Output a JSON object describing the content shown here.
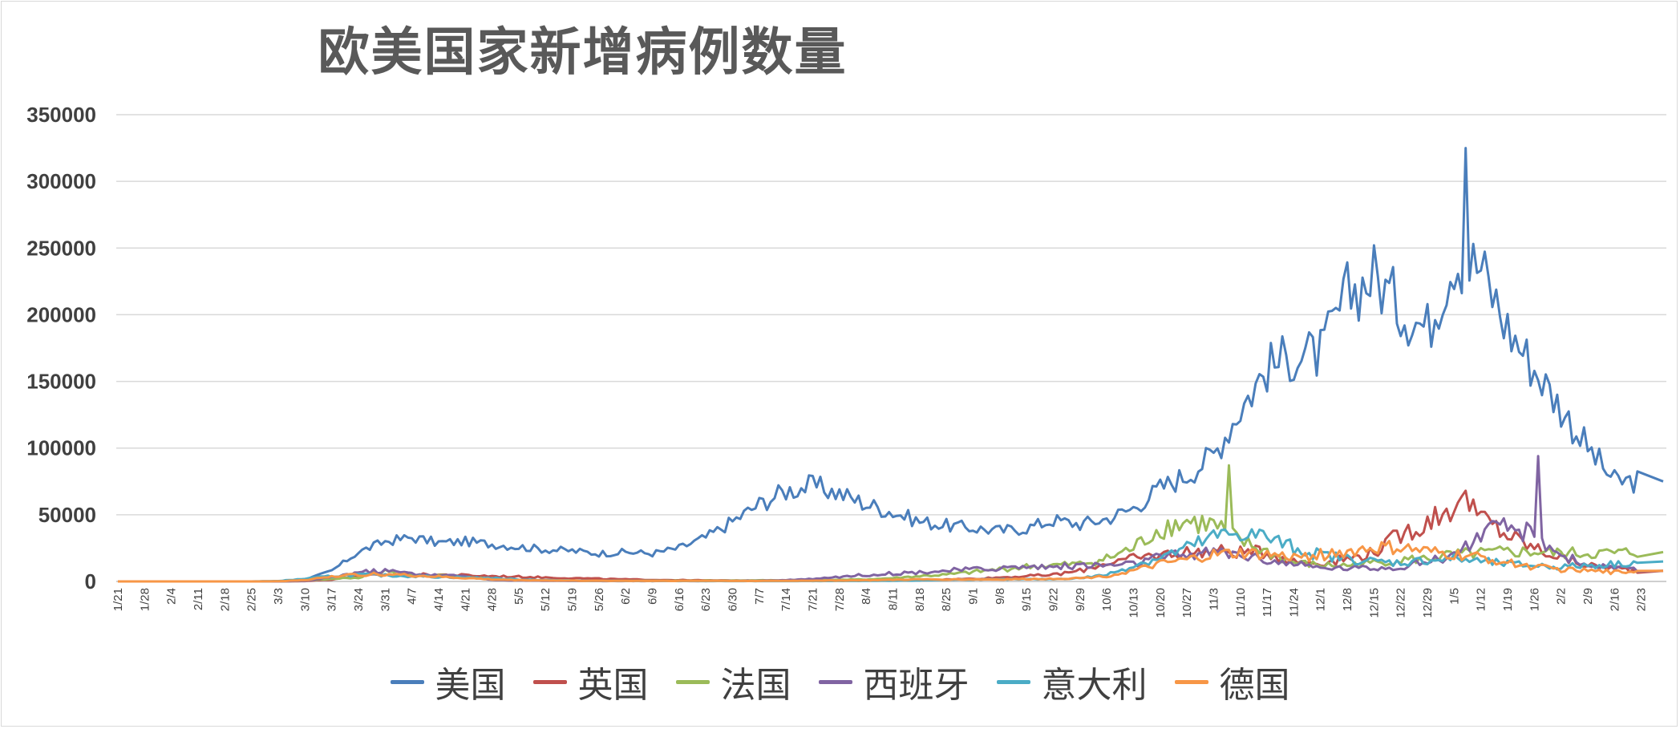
{
  "chart_data": {
    "type": "line",
    "title": "欧美国家新增病例数量",
    "xlabel": "",
    "ylabel": "",
    "ylim": [
      0,
      350000
    ],
    "y_ticks": [
      "350000",
      "300000",
      "250000",
      "200000",
      "150000",
      "100000",
      "50000",
      "0"
    ],
    "x_tick_labels": [
      "1/21",
      "1/28",
      "2/4",
      "2/11",
      "2/18",
      "2/25",
      "3/3",
      "3/10",
      "3/17",
      "3/24",
      "3/31",
      "4/7",
      "4/14",
      "4/21",
      "4/28",
      "5/5",
      "5/12",
      "5/19",
      "5/26",
      "6/2",
      "6/9",
      "6/16",
      "6/23",
      "6/30",
      "7/7",
      "7/14",
      "7/21",
      "7/28",
      "8/4",
      "8/11",
      "8/18",
      "8/25",
      "9/1",
      "9/8",
      "9/15",
      "9/22",
      "9/29",
      "10/6",
      "10/13",
      "10/20",
      "10/27",
      "11/3",
      "11/10",
      "11/17",
      "11/24",
      "12/1",
      "12/8",
      "12/15",
      "12/22",
      "12/29",
      "1/5",
      "1/12",
      "1/19",
      "1/26",
      "2/2",
      "2/9",
      "2/16",
      "2/23"
    ],
    "x_note": "values are approximate weekly averages read from the chart, one per x tick (1/21 through 2/23), plus peak annotations",
    "series": [
      {
        "name": "美国",
        "color": "#4a7ebb",
        "values": [
          0,
          0,
          0,
          0,
          0,
          0,
          100,
          1500,
          8000,
          22000,
          30000,
          33000,
          29000,
          30000,
          28000,
          26000,
          24000,
          23000,
          21000,
          22000,
          21000,
          25000,
          33000,
          45000,
          58000,
          68000,
          72000,
          66000,
          58000,
          52000,
          45000,
          42000,
          40000,
          38000,
          40000,
          46000,
          43000,
          47000,
          55000,
          70000,
          80000,
          95000,
          130000,
          160000,
          170000,
          170000,
          215000,
          230000,
          205000,
          190000,
          245000,
          235000,
          190000,
          160000,
          130000,
          100000,
          75000,
          75000
        ]
      },
      {
        "name": "英国",
        "color": "#c0504d",
        "values": [
          0,
          0,
          0,
          0,
          0,
          0,
          0,
          300,
          1500,
          4000,
          5000,
          5000,
          5000,
          4500,
          4000,
          3500,
          3000,
          2500,
          2000,
          1500,
          1200,
          1000,
          800,
          700,
          600,
          600,
          700,
          800,
          900,
          1000,
          1100,
          1500,
          2000,
          3000,
          4000,
          5000,
          8000,
          14000,
          17000,
          20000,
          22000,
          23000,
          22000,
          22000,
          15000,
          14000,
          17000,
          22000,
          35000,
          45000,
          58000,
          48000,
          35000,
          25000,
          18000,
          12000,
          10000,
          8000
        ]
      },
      {
        "name": "法国",
        "color": "#9bbb59",
        "values": [
          0,
          0,
          0,
          0,
          0,
          0,
          0,
          500,
          2000,
          3000,
          8000,
          4500,
          5000,
          3000,
          2000,
          1000,
          800,
          500,
          400,
          500,
          500,
          500,
          600,
          700,
          800,
          900,
          1000,
          1200,
          1500,
          2500,
          4000,
          5000,
          7000,
          9000,
          11000,
          12000,
          13000,
          17000,
          25000,
          40000,
          45000,
          42000,
          30000,
          22000,
          14000,
          12000,
          12000,
          14000,
          16000,
          17000,
          20000,
          21000,
          22000,
          22000,
          21000,
          21000,
          21000,
          22000
        ]
      },
      {
        "name": "西班牙",
        "color": "#8064a2",
        "values": [
          0,
          0,
          0,
          0,
          0,
          0,
          0,
          500,
          3000,
          7000,
          8000,
          6000,
          4500,
          4000,
          1000,
          800,
          500,
          400,
          300,
          300,
          300,
          300,
          300,
          400,
          600,
          1000,
          2000,
          3500,
          5000,
          6000,
          7000,
          8000,
          9000,
          10000,
          11000,
          11000,
          12000,
          12000,
          13000,
          18000,
          20000,
          22000,
          20000,
          16000,
          13000,
          10000,
          10000,
          10000,
          11000,
          15000,
          20000,
          35000,
          40000,
          35000,
          20000,
          12000,
          10000,
          8000
        ]
      },
      {
        "name": "意大利",
        "color": "#4bacc6",
        "values": [
          0,
          0,
          0,
          0,
          0,
          0,
          300,
          2000,
          4000,
          5000,
          4500,
          4000,
          3500,
          3000,
          2500,
          1500,
          1000,
          700,
          500,
          400,
          300,
          300,
          250,
          250,
          250,
          250,
          300,
          300,
          400,
          500,
          800,
          1200,
          1500,
          1500,
          1600,
          1700,
          2500,
          5000,
          12000,
          18000,
          25000,
          33000,
          37000,
          33000,
          25000,
          20000,
          17000,
          15000,
          14000,
          16000,
          17000,
          15000,
          13000,
          12000,
          11000,
          12000,
          13000,
          15000
        ]
      },
      {
        "name": "德国",
        "color": "#f79646",
        "values": [
          0,
          0,
          0,
          0,
          0,
          0,
          100,
          1000,
          4000,
          5000,
          5500,
          4500,
          3500,
          2500,
          1500,
          1000,
          800,
          600,
          500,
          400,
          400,
          400,
          500,
          400,
          400,
          500,
          600,
          700,
          900,
          1200,
          1500,
          1500,
          1500,
          1500,
          1800,
          2000,
          2500,
          4000,
          8000,
          13000,
          16000,
          20000,
          21000,
          20000,
          18000,
          20000,
          22000,
          25000,
          25000,
          22000,
          20000,
          18000,
          14000,
          11000,
          9000,
          8000,
          7000,
          8000
        ]
      }
    ],
    "peaks": [
      {
        "series": "美国",
        "x": "1/8",
        "value": 325000
      },
      {
        "series": "法国",
        "x": "11/7",
        "value": 87000
      },
      {
        "series": "西班牙",
        "x": "1/27",
        "value": 94000
      },
      {
        "series": "英国",
        "x": "1/8",
        "value": 68000
      }
    ],
    "legend_position": "bottom-center",
    "grid": true
  }
}
